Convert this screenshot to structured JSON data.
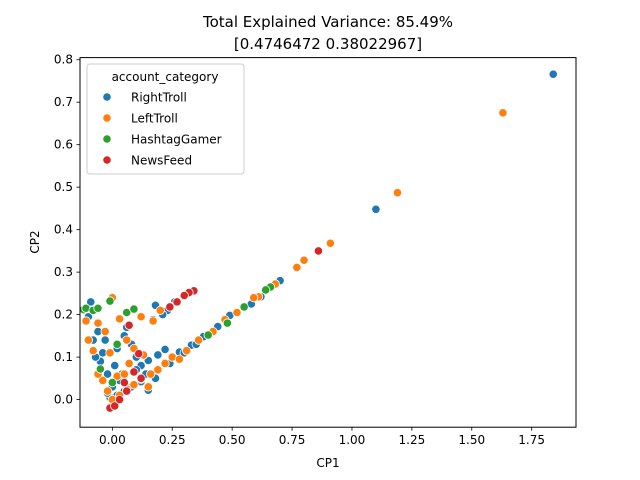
{
  "chart_data": {
    "type": "scatter",
    "title": "Total Explained Variance: 85.49%",
    "subtitle": "[0.4746472  0.38022967]",
    "xlabel": "CP1",
    "ylabel": "CP2",
    "xlim": [
      -0.135,
      1.935
    ],
    "ylim": [
      -0.065,
      0.805
    ],
    "xticks": [
      0.0,
      0.25,
      0.5,
      0.75,
      1.0,
      1.25,
      1.5,
      1.75
    ],
    "xtick_labels": [
      "0.00",
      "0.25",
      "0.50",
      "0.75",
      "1.00",
      "1.25",
      "1.50",
      "1.75"
    ],
    "yticks": [
      0.0,
      0.1,
      0.2,
      0.3,
      0.4,
      0.5,
      0.6,
      0.7,
      0.8
    ],
    "ytick_labels": [
      "0.0",
      "0.1",
      "0.2",
      "0.3",
      "0.4",
      "0.5",
      "0.6",
      "0.7",
      "0.8"
    ],
    "grid": false,
    "legend": {
      "title": "account_category",
      "position": "top-left"
    },
    "series": [
      {
        "name": "RightTroll",
        "color": "#1f77b4",
        "points": [
          [
            1.84,
            0.766
          ],
          [
            1.1,
            0.448
          ],
          [
            0.7,
            0.28
          ],
          [
            0.62,
            0.242
          ],
          [
            0.58,
            0.225
          ],
          [
            0.49,
            0.198
          ],
          [
            0.44,
            0.172
          ],
          [
            0.38,
            0.148
          ],
          [
            0.33,
            0.128
          ],
          [
            0.28,
            0.112
          ],
          [
            0.26,
            0.23
          ],
          [
            0.23,
            0.21
          ],
          [
            0.21,
            0.2
          ],
          [
            0.18,
            0.222
          ],
          [
            0.17,
            0.188
          ],
          [
            0.22,
            0.118
          ],
          [
            0.19,
            0.105
          ],
          [
            0.15,
            0.092
          ],
          [
            0.12,
            0.08
          ],
          [
            0.1,
            0.07
          ],
          [
            0.12,
            0.042
          ],
          [
            0.08,
            0.03
          ],
          [
            0.05,
            0.02
          ],
          [
            0.02,
            0.01
          ],
          [
            -0.01,
            0.005
          ],
          [
            -0.02,
            0.015
          ],
          [
            0.0,
            0.03
          ],
          [
            0.03,
            0.045
          ],
          [
            -0.02,
            0.06
          ],
          [
            0.01,
            0.08
          ],
          [
            -0.05,
            0.09
          ],
          [
            -0.07,
            0.1
          ],
          [
            -0.04,
            0.11
          ],
          [
            -0.08,
            0.14
          ],
          [
            -0.06,
            0.16
          ],
          [
            -0.09,
            0.23
          ],
          [
            -0.1,
            0.195
          ],
          [
            0.05,
            0.15
          ],
          [
            0.08,
            0.13
          ],
          [
            0.1,
            0.1
          ],
          [
            0.14,
            0.06
          ],
          [
            0.18,
            0.05
          ],
          [
            0.24,
            0.085
          ],
          [
            0.3,
            0.11
          ],
          [
            0.35,
            0.13
          ],
          [
            0.06,
            0.17
          ],
          [
            0.02,
            0.12
          ],
          [
            -0.03,
            0.14
          ],
          [
            0.04,
            0.06
          ],
          [
            0.15,
            0.022
          ]
        ]
      },
      {
        "name": "LeftTroll",
        "color": "#ff7f0e",
        "points": [
          [
            1.63,
            0.675
          ],
          [
            1.19,
            0.487
          ],
          [
            0.91,
            0.368
          ],
          [
            0.8,
            0.328
          ],
          [
            0.77,
            0.311
          ],
          [
            0.68,
            0.272
          ],
          [
            0.61,
            0.242
          ],
          [
            0.59,
            0.24
          ],
          [
            0.52,
            0.205
          ],
          [
            0.47,
            0.188
          ],
          [
            0.42,
            0.16
          ],
          [
            0.36,
            0.14
          ],
          [
            0.31,
            0.115
          ],
          [
            0.25,
            0.1
          ],
          [
            0.22,
            0.085
          ],
          [
            0.19,
            0.07
          ],
          [
            0.16,
            0.06
          ],
          [
            0.12,
            0.048
          ],
          [
            0.09,
            0.035
          ],
          [
            0.06,
            0.025
          ],
          [
            0.03,
            0.01
          ],
          [
            0.0,
            0.0
          ],
          [
            -0.02,
            0.02
          ],
          [
            -0.04,
            0.045
          ],
          [
            -0.06,
            0.06
          ],
          [
            -0.08,
            0.115
          ],
          [
            -0.1,
            0.14
          ],
          [
            -0.11,
            0.185
          ],
          [
            -0.06,
            0.18
          ],
          [
            0.0,
            0.24
          ],
          [
            0.03,
            0.19
          ],
          [
            0.06,
            0.14
          ],
          [
            0.09,
            0.12
          ],
          [
            0.12,
            0.195
          ],
          [
            0.17,
            0.185
          ],
          [
            0.2,
            0.21
          ],
          [
            0.24,
            0.22
          ],
          [
            0.13,
            0.105
          ],
          [
            0.07,
            0.085
          ],
          [
            0.02,
            0.055
          ],
          [
            -0.01,
            0.11
          ],
          [
            -0.03,
            0.16
          ],
          [
            0.05,
            0.06
          ],
          [
            0.15,
            0.03
          ],
          [
            0.28,
            0.095
          ]
        ]
      },
      {
        "name": "HashtagGamer",
        "color": "#2ca02c",
        "points": [
          [
            0.66,
            0.265
          ],
          [
            0.64,
            0.258
          ],
          [
            0.55,
            0.218
          ],
          [
            0.48,
            0.18
          ],
          [
            0.4,
            0.152
          ],
          [
            -0.12,
            0.212
          ],
          [
            -0.11,
            0.215
          ],
          [
            -0.08,
            0.21
          ],
          [
            -0.06,
            0.215
          ],
          [
            -0.01,
            0.232
          ],
          [
            0.06,
            0.205
          ],
          [
            0.09,
            0.213
          ],
          [
            -0.05,
            0.072
          ],
          [
            0.0,
            0.04
          ],
          [
            0.02,
            0.13
          ]
        ]
      },
      {
        "name": "NewsFeed",
        "color": "#d62728",
        "points": [
          [
            0.86,
            0.35
          ],
          [
            0.34,
            0.256
          ],
          [
            0.32,
            0.252
          ],
          [
            0.3,
            0.245
          ],
          [
            0.27,
            0.23
          ],
          [
            0.24,
            0.218
          ],
          [
            0.11,
            0.108
          ],
          [
            0.09,
            0.065
          ],
          [
            0.07,
            0.175
          ],
          [
            0.05,
            0.04
          ],
          [
            -0.01,
            -0.02
          ],
          [
            0.01,
            -0.015
          ],
          [
            0.03,
            0.0
          ],
          [
            0.06,
            0.02
          ],
          [
            0.12,
            0.05
          ]
        ]
      }
    ]
  }
}
